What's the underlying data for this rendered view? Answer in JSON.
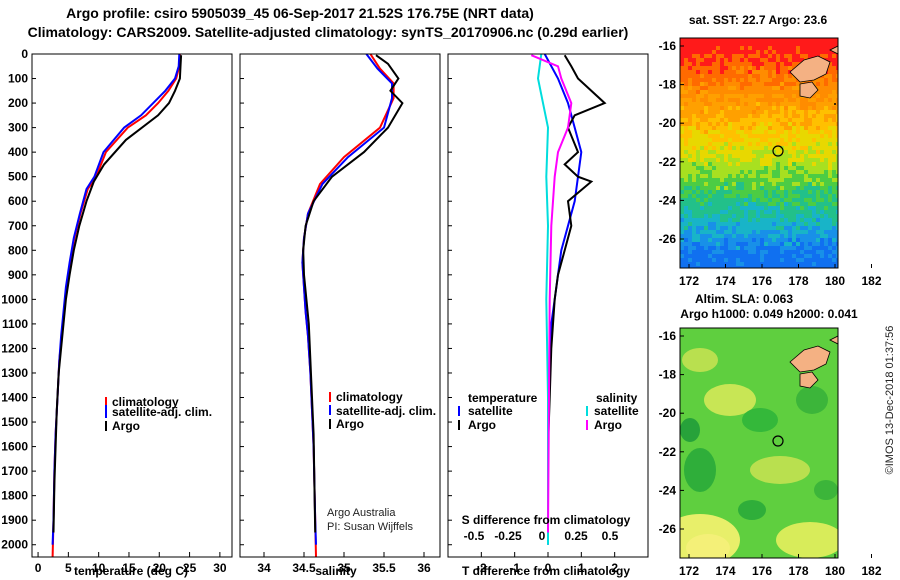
{
  "title_line1": "Argo profile: csiro 5905039_45 06-Sep-2017 21.52S 176.75E (NRT data)",
  "title_line2": "Climatology: CARS2009. Satellite-adjusted climatology: synTS_20170906.nc (0.29d earlier)",
  "sst_title": "sat. SST: 22.7 Argo: 23.6",
  "sla_title1": "Altim. SLA: 0.063",
  "sla_title2": "Argo h1000: 0.049 h2000: 0.041",
  "watermark": "©IMOS 13-Dec-2018 01:37:56",
  "credit1": "Argo Australia",
  "credit2": "PI: Susan Wijffels",
  "colors": {
    "climatology": "#ff0000",
    "satellite": "#0000ff",
    "argo": "#000000",
    "satellite_s": "#00dddd",
    "argo_s": "#ff00ff"
  },
  "chart_data": [
    {
      "type": "line",
      "xlabel": "temperature (deg C)",
      "ylim": [
        2050,
        0
      ],
      "xlim": [
        -1,
        32
      ],
      "xticks": [
        0,
        5,
        10,
        15,
        20,
        25,
        30
      ],
      "yticks": [
        0,
        100,
        200,
        300,
        400,
        500,
        600,
        700,
        800,
        900,
        1000,
        1100,
        1200,
        1300,
        1400,
        1500,
        1600,
        1700,
        1800,
        1900,
        2000
      ],
      "legend": [
        "climatology",
        "satellite-adj. clim.",
        "Argo"
      ],
      "series": [
        {
          "name": "climatology",
          "x": [
            23.4,
            23.3,
            22.8,
            21.5,
            19.8,
            17.8,
            14.8,
            11.2,
            9.6,
            8.2,
            7.0,
            6.0,
            5.3,
            4.7,
            4.3,
            3.9,
            3.5,
            3.2,
            2.9,
            2.7,
            2.55,
            2.4
          ],
          "y": [
            0,
            50,
            100,
            150,
            200,
            250,
            300,
            400,
            500,
            550,
            650,
            750,
            850,
            950,
            1050,
            1150,
            1250,
            1400,
            1550,
            1700,
            1900,
            2050
          ]
        },
        {
          "name": "satellite-adj. clim.",
          "x": [
            23.3,
            23.2,
            22.6,
            21.0,
            19.0,
            17.0,
            14.2,
            10.8,
            9.3,
            8.0,
            6.9,
            5.9,
            5.2,
            4.6,
            4.2,
            3.8,
            3.5,
            3.2,
            2.9,
            2.7,
            2.55,
            2.4
          ],
          "y": [
            0,
            50,
            100,
            150,
            200,
            250,
            300,
            400,
            500,
            550,
            650,
            750,
            850,
            950,
            1050,
            1150,
            1250,
            1400,
            1550,
            1700,
            1900,
            2000
          ]
        },
        {
          "name": "Argo",
          "x": [
            23.6,
            23.5,
            23.4,
            22.6,
            21.6,
            19.8,
            14.5,
            10.9,
            9.2,
            8.0,
            6.8,
            5.9,
            5.2,
            4.6,
            4.2,
            3.8,
            3.4,
            3.1,
            2.9,
            2.7,
            2.55
          ],
          "y": [
            5,
            50,
            100,
            150,
            200,
            250,
            350,
            450,
            520,
            600,
            700,
            800,
            900,
            1000,
            1100,
            1200,
            1300,
            1450,
            1600,
            1750,
            1950
          ]
        }
      ]
    },
    {
      "type": "line",
      "xlabel": "salinity",
      "ylim": [
        2050,
        0
      ],
      "xlim": [
        33.7,
        36.2
      ],
      "xticks": [
        34,
        34.5,
        35,
        35.5,
        36
      ],
      "legend": [
        "climatology",
        "satellite-adj. clim.",
        "Argo"
      ],
      "series": [
        {
          "name": "climatology",
          "x": [
            35.33,
            35.45,
            35.62,
            35.62,
            35.45,
            35.0,
            34.7,
            34.55,
            34.5,
            34.48,
            34.5,
            34.52,
            34.55,
            34.58,
            34.6,
            34.62,
            34.63,
            34.64,
            34.65
          ],
          "y": [
            0,
            60,
            120,
            180,
            300,
            420,
            530,
            650,
            750,
            850,
            950,
            1050,
            1150,
            1300,
            1450,
            1600,
            1750,
            1900,
            2050
          ]
        },
        {
          "name": "satellite-adj. clim.",
          "x": [
            35.28,
            35.42,
            35.6,
            35.6,
            35.5,
            35.05,
            34.73,
            34.55,
            34.5,
            34.48,
            34.5,
            34.52,
            34.55,
            34.58,
            34.6,
            34.62,
            34.63,
            34.64,
            34.65
          ],
          "y": [
            0,
            60,
            120,
            180,
            300,
            420,
            530,
            650,
            750,
            850,
            950,
            1050,
            1150,
            1300,
            1450,
            1600,
            1750,
            1900,
            2000
          ]
        },
        {
          "name": "Argo",
          "x": [
            35.4,
            35.55,
            35.68,
            35.58,
            35.73,
            35.55,
            35.25,
            34.85,
            34.62,
            34.52,
            34.49,
            34.5,
            34.53,
            34.56,
            34.58,
            34.6,
            34.62,
            34.63,
            34.64
          ],
          "y": [
            5,
            40,
            100,
            150,
            200,
            300,
            400,
            500,
            600,
            700,
            800,
            900,
            1000,
            1100,
            1250,
            1400,
            1550,
            1750,
            1950
          ]
        }
      ]
    },
    {
      "type": "line",
      "xlabel": "T difference from climatology",
      "top_label": "S difference from climatology",
      "ylim": [
        2050,
        0
      ],
      "xlim": [
        -3,
        3
      ],
      "xticks": [
        -2,
        -1,
        0,
        1,
        2
      ],
      "top_ticks": [
        "-0.5",
        "-0.25",
        "0",
        "0.25",
        "0.5"
      ],
      "legend_left_title": "temperature",
      "legend_right_title": "salinity",
      "legend_left": [
        "satellite",
        "Argo"
      ],
      "legend_right": [
        "satellite",
        "Argo"
      ],
      "series": [
        {
          "name": "satellite (T)",
          "x": [
            -0.1,
            0.3,
            0.6,
            0.8,
            1.0,
            0.9,
            0.8,
            0.6,
            0.4,
            0.3,
            0.2,
            0.1,
            0.05,
            0.0,
            0.0
          ],
          "y": [
            0,
            100,
            200,
            300,
            400,
            500,
            600,
            700,
            800,
            900,
            1000,
            1100,
            1300,
            1600,
            2000
          ]
        },
        {
          "name": "Argo (T)",
          "x": [
            0.5,
            0.7,
            0.9,
            1.7,
            0.8,
            0.6,
            0.9,
            0.5,
            0.9,
            1.3,
            0.6,
            0.7,
            0.5,
            0.3,
            0.2,
            0.15,
            0.1,
            0.05,
            0.0,
            0.0
          ],
          "y": [
            5,
            50,
            100,
            200,
            250,
            300,
            400,
            450,
            500,
            520,
            600,
            700,
            800,
            900,
            1000,
            1100,
            1200,
            1400,
            1600,
            1950
          ]
        },
        {
          "name": "satellite (S)",
          "x": [
            -0.2,
            -0.3,
            -0.15,
            0.0,
            -0.05,
            0.0,
            -0.05,
            0.0,
            0.0
          ],
          "y": [
            0,
            100,
            200,
            300,
            500,
            700,
            1000,
            1400,
            2000
          ]
        },
        {
          "name": "Argo (S)",
          "x": [
            -0.5,
            0.3,
            0.4,
            0.7,
            0.6,
            0.3,
            0.2,
            0.1,
            0.05,
            0.0
          ],
          "y": [
            5,
            50,
            100,
            200,
            300,
            400,
            500,
            700,
            1000,
            1950
          ]
        }
      ]
    }
  ],
  "map_panels": [
    {
      "name": "sst",
      "xticks": [
        "172",
        "174",
        "176",
        "178",
        "180",
        "182"
      ],
      "yticks": [
        "-16",
        "-18",
        "-20",
        "-22",
        "-24",
        "-26"
      ],
      "argo_marker": {
        "lon": 176.75,
        "lat": -21.52
      }
    },
    {
      "name": "sla",
      "xticks": [
        "172",
        "174",
        "176",
        "178",
        "180",
        "182"
      ],
      "yticks": [
        "-16",
        "-18",
        "-20",
        "-22",
        "-24",
        "-26"
      ],
      "argo_marker": {
        "lon": 176.75,
        "lat": -21.52
      }
    }
  ]
}
